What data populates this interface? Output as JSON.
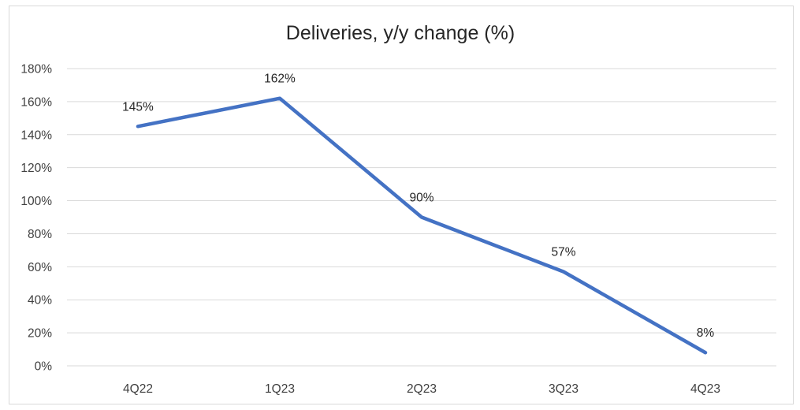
{
  "chart_data": {
    "type": "line",
    "title": "Deliveries, y/y change (%)",
    "xlabel": "",
    "ylabel": "",
    "categories": [
      "4Q22",
      "1Q23",
      "2Q23",
      "3Q23",
      "4Q23"
    ],
    "series": [
      {
        "values": [
          145,
          162,
          90,
          57,
          8
        ],
        "data_labels": [
          "145%",
          "162%",
          "90%",
          "57%",
          "8%"
        ],
        "color": "#4472c4"
      }
    ],
    "ylim": [
      0,
      180
    ],
    "y_ticks": [
      0,
      20,
      40,
      60,
      80,
      100,
      120,
      140,
      160,
      180
    ],
    "y_tick_labels": [
      "0%",
      "20%",
      "40%",
      "60%",
      "80%",
      "100%",
      "120%",
      "140%",
      "160%",
      "180%"
    ],
    "grid": true,
    "legend": "none",
    "gridline_color": "#d9d9d9"
  }
}
